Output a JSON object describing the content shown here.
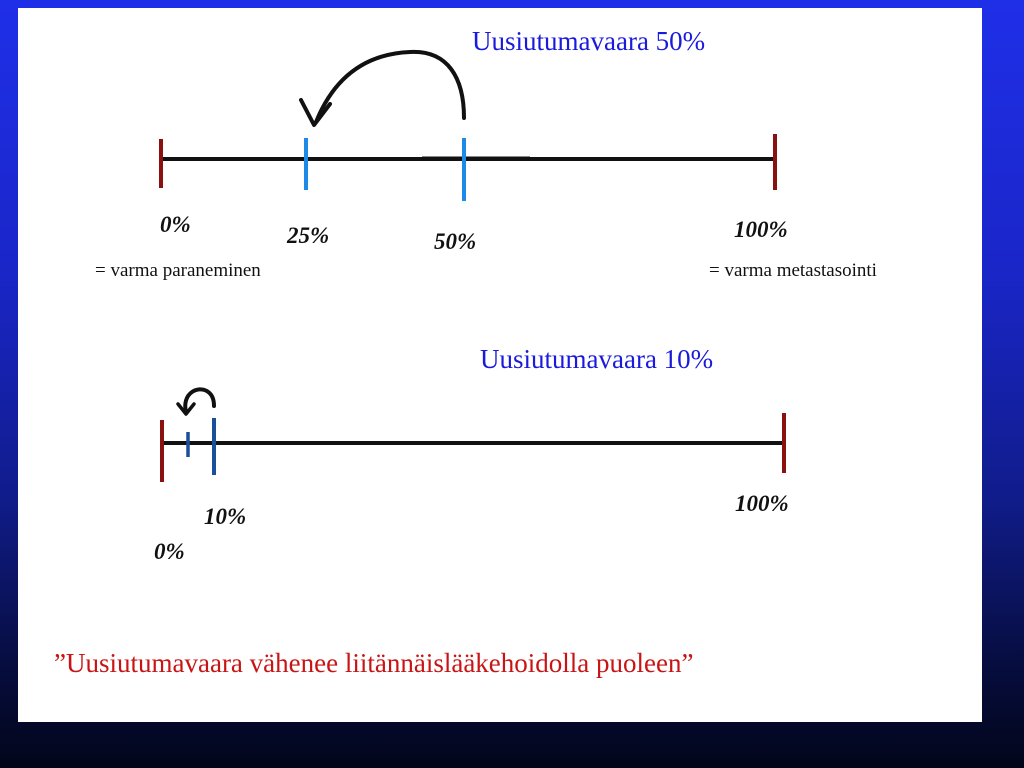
{
  "diagram1": {
    "title": "Uusiutumavaara 50%",
    "labels": [
      "0%",
      "25%",
      "50%",
      "100%"
    ],
    "note_left": "= varma paraneminen",
    "note_right": "= varma metastasointi"
  },
  "diagram2": {
    "title": "Uusiutumavaara 10%",
    "labels": [
      "0%",
      "10%",
      "100%"
    ]
  },
  "quote": "”Uusiutumavaara vähenee liitännäislääkehoidolla puoleen”",
  "colors": {
    "background": "#1a26c8",
    "title": "#1a1adc",
    "end_marker": "#8b1010",
    "tick_marker": "#1e8ae8",
    "tick_marker_dark": "#1a4f9a",
    "quote": "#c81414"
  }
}
